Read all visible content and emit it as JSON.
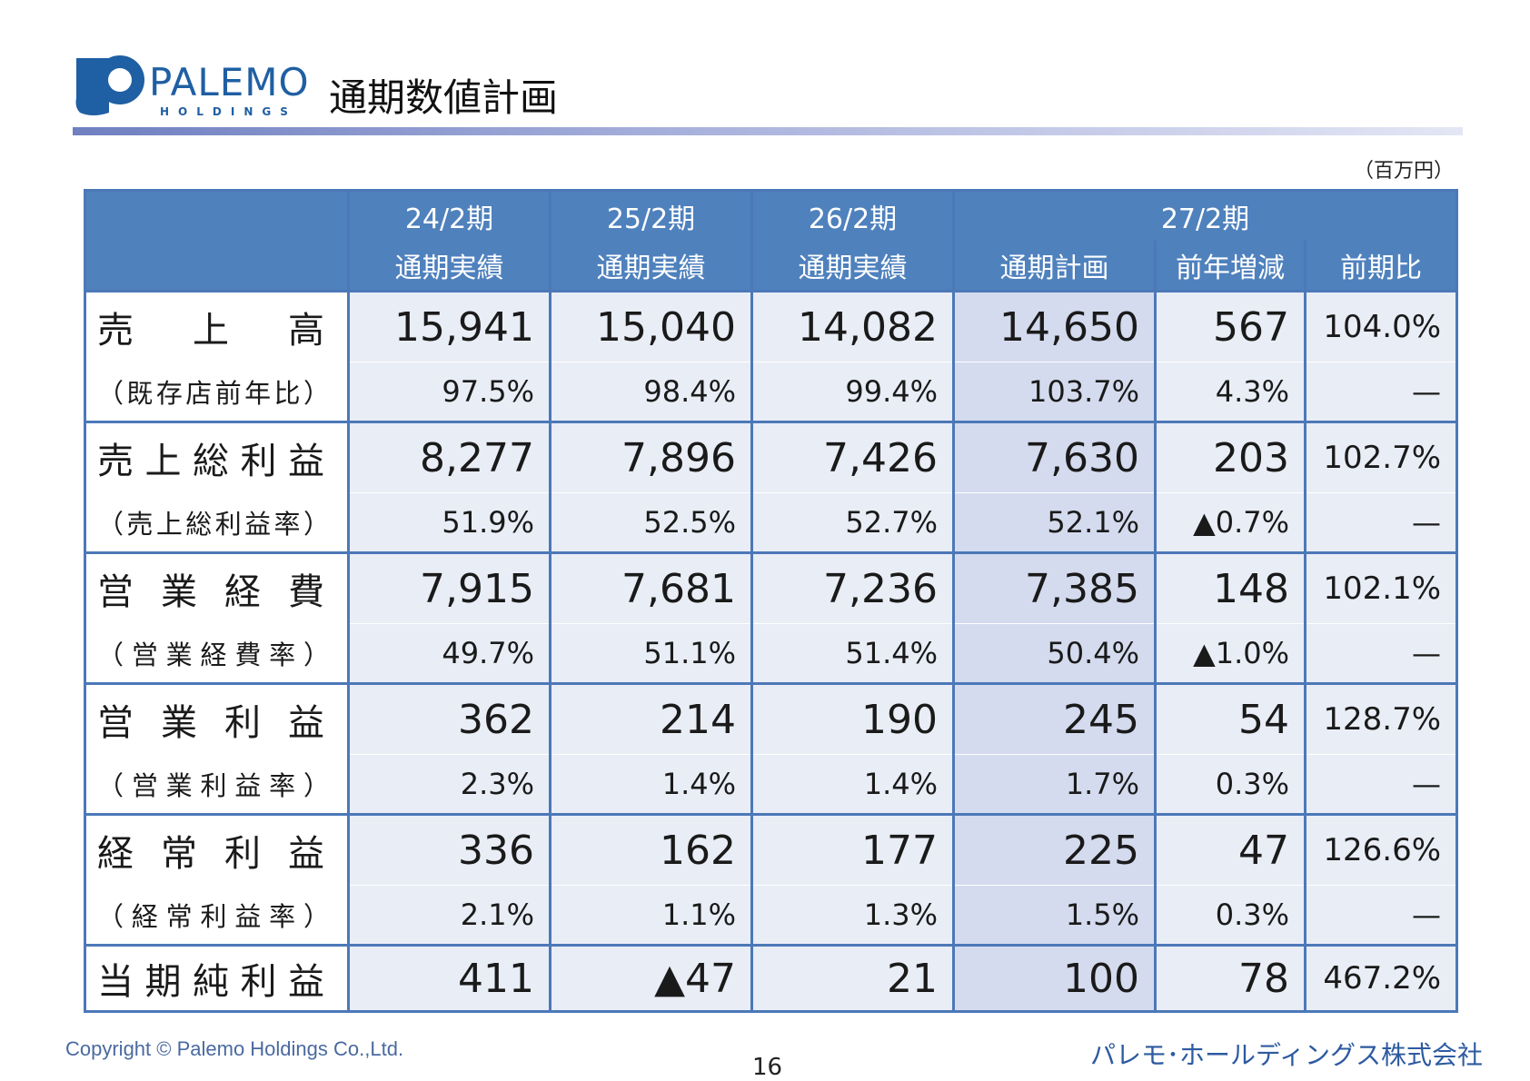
{
  "logo": {
    "name": "PALEMO",
    "sub": "HOLDINGS",
    "brand_color": "#1f5fa3"
  },
  "title": "通期数値計画",
  "unit": "（百万円）",
  "table": {
    "col_groups": [
      "24/2期",
      "25/2期",
      "26/2期",
      "27/2期"
    ],
    "col_subs": [
      "通期実績",
      "通期実績",
      "通期実績",
      "通期計画",
      "前年増減",
      "前期比"
    ],
    "header_color": "#4f81bd",
    "rows": [
      {
        "label": "売上高",
        "label_chars": [
          "売",
          "上",
          "高"
        ],
        "values": [
          "15,941",
          "15,040",
          "14,082",
          "14,650",
          "567",
          "104.0%"
        ],
        "sub_label_chars": [
          "（",
          "既",
          "存",
          "店",
          "前",
          "年",
          "比",
          "）"
        ],
        "sub_values": [
          "97.5%",
          "98.4%",
          "99.4%",
          "103.7%",
          "4.3%",
          "—"
        ]
      },
      {
        "label": "売上総利益",
        "label_chars": [
          "売",
          "上",
          "総",
          "利",
          "益"
        ],
        "values": [
          "8,277",
          "7,896",
          "7,426",
          "7,630",
          "203",
          "102.7%"
        ],
        "sub_label_chars": [
          "（",
          "売",
          "上",
          "総",
          "利",
          "益",
          "率",
          "）"
        ],
        "sub_values": [
          "51.9%",
          "52.5%",
          "52.7%",
          "52.1%",
          "▲0.7%",
          "—"
        ]
      },
      {
        "label": "営業経費",
        "label_chars": [
          "営",
          "業",
          "経",
          "費"
        ],
        "values": [
          "7,915",
          "7,681",
          "7,236",
          "7,385",
          "148",
          "102.1%"
        ],
        "sub_label_chars": [
          "（",
          "営",
          "業",
          "経",
          "費",
          "率",
          "）"
        ],
        "sub_values": [
          "49.7%",
          "51.1%",
          "51.4%",
          "50.4%",
          "▲1.0%",
          "—"
        ]
      },
      {
        "label": "営業利益",
        "label_chars": [
          "営",
          "業",
          "利",
          "益"
        ],
        "values": [
          "362",
          "214",
          "190",
          "245",
          "54",
          "128.7%"
        ],
        "sub_label_chars": [
          "（",
          "営",
          "業",
          "利",
          "益",
          "率",
          "）"
        ],
        "sub_values": [
          "2.3%",
          "1.4%",
          "1.4%",
          "1.7%",
          "0.3%",
          "—"
        ]
      },
      {
        "label": "経常利益",
        "label_chars": [
          "経",
          "常",
          "利",
          "益"
        ],
        "values": [
          "336",
          "162",
          "177",
          "225",
          "47",
          "126.6%"
        ],
        "sub_label_chars": [
          "（",
          "経",
          "常",
          "利",
          "益",
          "率",
          "）"
        ],
        "sub_values": [
          "2.1%",
          "1.1%",
          "1.3%",
          "1.5%",
          "0.3%",
          "—"
        ]
      },
      {
        "label": "当期純利益",
        "label_chars": [
          "当",
          "期",
          "純",
          "利",
          "益"
        ],
        "values": [
          "411",
          "▲47",
          "21",
          "100",
          "78",
          "467.2%"
        ]
      }
    ]
  },
  "footer": {
    "copyright": "Copyright © Palemo Holdings Co.,Ltd.",
    "page": "16",
    "company": "パレモ･ホールディングス株式会社"
  }
}
